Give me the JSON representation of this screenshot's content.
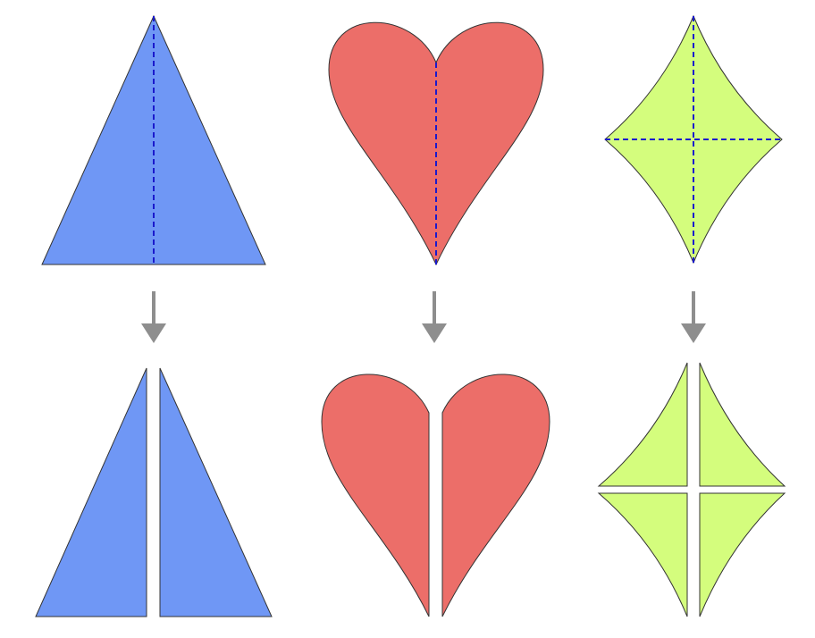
{
  "colors": {
    "triangle_fill": "#6f97f5",
    "heart_fill": "#ec6e69",
    "kite_fill": "#d4fd7d",
    "outline": "#333333",
    "fold_line": "#1a1acc",
    "arrow": "#8e8e8e",
    "background": "#ffffff"
  },
  "shapes": [
    {
      "name": "triangle",
      "fold_lines": [
        "vertical"
      ],
      "pieces_after_cut": 2
    },
    {
      "name": "heart",
      "fold_lines": [
        "vertical"
      ],
      "pieces_after_cut": 2
    },
    {
      "name": "kite",
      "fold_lines": [
        "vertical",
        "horizontal"
      ],
      "pieces_after_cut": 4
    }
  ],
  "arrows": [
    {
      "icon": "arrow-down-icon"
    },
    {
      "icon": "arrow-down-icon"
    },
    {
      "icon": "arrow-down-icon"
    }
  ]
}
